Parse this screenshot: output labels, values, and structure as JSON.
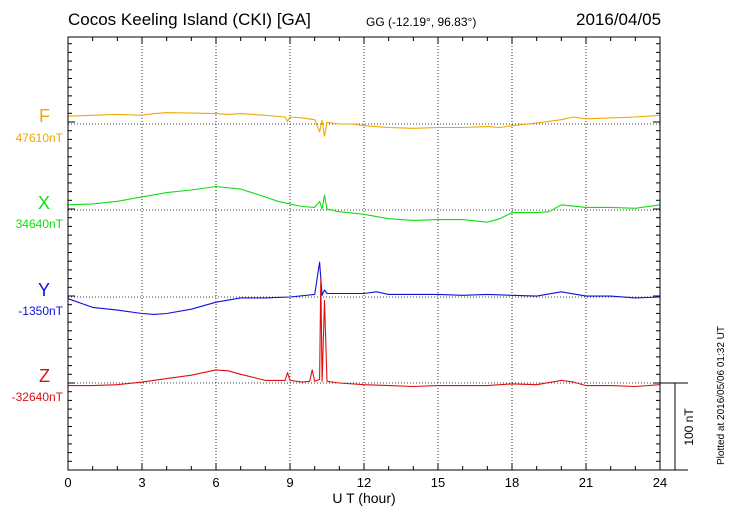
{
  "header": {
    "station": "Cocos Keeling Island (CKI)  [GA]",
    "coords": "GG (-12.19°,  96.83°)",
    "date": "2016/04/05"
  },
  "footer": {
    "plotted": "Plotted at 2016/05/06 01:32 UT"
  },
  "chart_data": {
    "type": "line",
    "title": "Cocos Keeling Island (CKI)  [GA]",
    "xlabel": "U T (hour)",
    "xlim": [
      0,
      24
    ],
    "xticks": [
      "0",
      "3",
      "6",
      "9",
      "12",
      "15",
      "18",
      "21",
      "24"
    ],
    "scale_bar": {
      "label": "100 nT",
      "value_nT": 100
    },
    "grid": true,
    "series": [
      {
        "name": "F",
        "baseline_label": "47610nT",
        "baseline_nT": 47610,
        "color": "#f0a800",
        "points": [
          [
            0,
            9
          ],
          [
            1,
            10
          ],
          [
            2,
            11
          ],
          [
            3,
            10
          ],
          [
            3.5,
            12
          ],
          [
            4,
            13
          ],
          [
            5,
            12.5
          ],
          [
            6,
            12
          ],
          [
            6.5,
            11
          ],
          [
            7,
            12
          ],
          [
            8,
            10
          ],
          [
            8.8,
            8
          ],
          [
            8.9,
            3
          ],
          [
            9,
            8
          ],
          [
            9.5,
            7
          ],
          [
            10,
            5
          ],
          [
            10.2,
            -9
          ],
          [
            10.3,
            4
          ],
          [
            10.4,
            -14
          ],
          [
            10.5,
            2
          ],
          [
            11,
            0
          ],
          [
            11.5,
            0
          ],
          [
            12,
            -2
          ],
          [
            13,
            -4
          ],
          [
            14,
            -5
          ],
          [
            15,
            -4
          ],
          [
            16,
            -4
          ],
          [
            17,
            -3
          ],
          [
            17.5,
            -4
          ],
          [
            18,
            -2
          ],
          [
            19,
            1
          ],
          [
            20,
            5
          ],
          [
            20.5,
            8
          ],
          [
            21,
            6
          ],
          [
            22,
            7
          ],
          [
            23,
            8
          ],
          [
            24,
            10
          ]
        ]
      },
      {
        "name": "X",
        "baseline_label": "34640nT",
        "baseline_nT": 34640,
        "color": "#10dd10",
        "points": [
          [
            0,
            6
          ],
          [
            1,
            7
          ],
          [
            2,
            10
          ],
          [
            3,
            15
          ],
          [
            4,
            20
          ],
          [
            5,
            23
          ],
          [
            6,
            27
          ],
          [
            7,
            24
          ],
          [
            8,
            15
          ],
          [
            8.5,
            10
          ],
          [
            9,
            7
          ],
          [
            9.5,
            4
          ],
          [
            10,
            3
          ],
          [
            10.2,
            10
          ],
          [
            10.3,
            1
          ],
          [
            10.4,
            17
          ],
          [
            10.5,
            1
          ],
          [
            11,
            -2
          ],
          [
            12,
            -5
          ],
          [
            13,
            -10
          ],
          [
            14,
            -12
          ],
          [
            15,
            -11
          ],
          [
            16,
            -11
          ],
          [
            17,
            -14
          ],
          [
            17.5,
            -10
          ],
          [
            18,
            -3
          ],
          [
            19,
            -3
          ],
          [
            19.5,
            -2
          ],
          [
            20,
            6
          ],
          [
            21,
            3
          ],
          [
            22,
            3
          ],
          [
            23,
            2
          ],
          [
            24,
            6
          ]
        ]
      },
      {
        "name": "Y",
        "baseline_label": "-1350nT",
        "baseline_nT": -1350,
        "color": "#1010dd",
        "points": [
          [
            0,
            -2
          ],
          [
            1,
            -12
          ],
          [
            2,
            -15
          ],
          [
            3,
            -19
          ],
          [
            3.5,
            -20
          ],
          [
            4,
            -19
          ],
          [
            5,
            -14
          ],
          [
            6,
            -6
          ],
          [
            7,
            -1
          ],
          [
            8,
            -1
          ],
          [
            9,
            0
          ],
          [
            10,
            3
          ],
          [
            10.2,
            40
          ],
          [
            10.3,
            2
          ],
          [
            10.4,
            8
          ],
          [
            10.5,
            4
          ],
          [
            11,
            4
          ],
          [
            12,
            4
          ],
          [
            12.5,
            6
          ],
          [
            13,
            3
          ],
          [
            14,
            3
          ],
          [
            15,
            3
          ],
          [
            16,
            2
          ],
          [
            17,
            3
          ],
          [
            18,
            2
          ],
          [
            19,
            1
          ],
          [
            20,
            6
          ],
          [
            21,
            1
          ],
          [
            22,
            1
          ],
          [
            23,
            -1
          ],
          [
            24,
            0
          ]
        ]
      },
      {
        "name": "Z",
        "baseline_label": "-32640nT",
        "baseline_nT": -32640,
        "color": "#dd1010",
        "points": [
          [
            0,
            -3
          ],
          [
            1,
            -3
          ],
          [
            2,
            -2
          ],
          [
            3,
            1
          ],
          [
            4,
            5
          ],
          [
            5,
            9
          ],
          [
            6,
            15
          ],
          [
            6.5,
            14
          ],
          [
            7,
            10
          ],
          [
            8,
            3
          ],
          [
            8.8,
            3
          ],
          [
            8.9,
            12
          ],
          [
            9,
            3
          ],
          [
            9.5,
            1
          ],
          [
            9.8,
            2
          ],
          [
            9.9,
            15
          ],
          [
            10,
            2
          ],
          [
            10.2,
            4
          ],
          [
            10.25,
            120
          ],
          [
            10.3,
            2
          ],
          [
            10.4,
            95
          ],
          [
            10.5,
            2
          ],
          [
            11,
            0
          ],
          [
            12,
            -2
          ],
          [
            13,
            -3
          ],
          [
            14,
            -4
          ],
          [
            15,
            -3
          ],
          [
            16,
            -3
          ],
          [
            17,
            -3
          ],
          [
            18,
            -1
          ],
          [
            19,
            -2
          ],
          [
            20,
            3
          ],
          [
            20.5,
            1
          ],
          [
            21,
            -3
          ],
          [
            22,
            -3
          ],
          [
            23,
            -4
          ],
          [
            24,
            -2
          ]
        ]
      }
    ]
  }
}
